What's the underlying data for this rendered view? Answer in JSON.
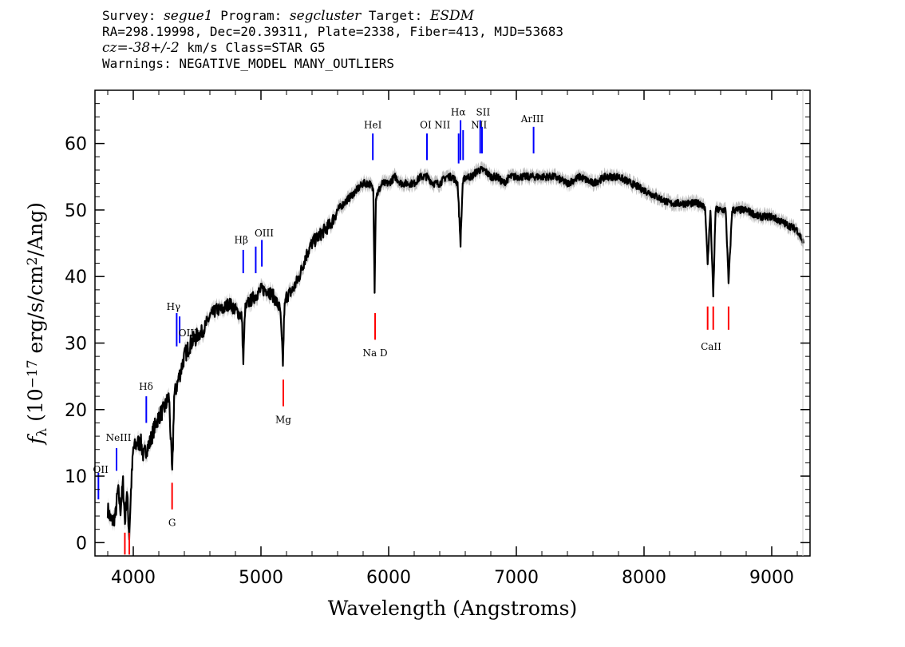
{
  "header": {
    "line1": [
      {
        "t": "Survey: ",
        "i": false
      },
      {
        "t": "segue1",
        "i": true
      },
      {
        "t": " Program: ",
        "i": false
      },
      {
        "t": "segcluster",
        "i": true
      },
      {
        "t": " Target: ",
        "i": false
      },
      {
        "t": "ESDM",
        "i": true
      }
    ],
    "line2": "RA=298.19998, Dec=20.39311, Plate=2338, Fiber=413, MJD=53683",
    "line3": [
      {
        "t": "cz=-38+/-2",
        "i": true
      },
      {
        "t": " km/s Class=STAR G5",
        "i": false
      }
    ],
    "line4": "Warnings: NEGATIVE_MODEL MANY_OUTLIERS"
  },
  "chart_data": {
    "type": "line",
    "xlabel": "Wavelength (Angstroms)",
    "ylabel": "f_λ (10^-17 erg/s/cm^2/Ang)",
    "xlim": [
      3700,
      9300
    ],
    "ylim": [
      -2,
      68
    ],
    "xticks": [
      4000,
      5000,
      6000,
      7000,
      8000,
      9000
    ],
    "yticks": [
      0,
      10,
      20,
      30,
      40,
      50,
      60
    ],
    "grid": false,
    "colors": {
      "flux": "#000000",
      "error": "#bdbdbd",
      "emission": "#0000ff",
      "absorption": "#ff0000"
    },
    "series": [
      {
        "x": [
          3800,
          3830,
          3860,
          3880,
          3900,
          3920,
          3935,
          3950,
          3968,
          3985,
          4000,
          4030,
          4060,
          4080,
          4100,
          4130,
          4160,
          4200,
          4240,
          4280,
          4305,
          4320,
          4360,
          4400,
          4450,
          4500,
          4550,
          4600,
          4650,
          4700,
          4750,
          4800,
          4850,
          4862,
          4875,
          4900,
          4950,
          5000,
          5050,
          5100,
          5150,
          5172,
          5183,
          5200,
          5250,
          5300,
          5350,
          5400,
          5450,
          5500,
          5550,
          5600,
          5650,
          5700,
          5750,
          5800,
          5850,
          5880,
          5890,
          5900,
          5950,
          6000,
          6050,
          6100,
          6150,
          6200,
          6250,
          6300,
          6350,
          6400,
          6450,
          6500,
          6540,
          6563,
          6580,
          6600,
          6650,
          6700,
          6750,
          6800,
          6850,
          6900,
          6950,
          7000,
          7100,
          7200,
          7300,
          7400,
          7500,
          7600,
          7700,
          7800,
          7900,
          8000,
          8100,
          8200,
          8300,
          8400,
          8450,
          8480,
          8498,
          8520,
          8542,
          8560,
          8600,
          8640,
          8662,
          8690,
          8750,
          8800,
          8900,
          9000,
          9100,
          9200,
          9250
        ],
        "y": [
          5,
          3,
          4,
          8,
          5,
          9,
          3,
          8,
          1,
          9,
          14,
          15,
          15,
          13,
          14,
          15,
          17,
          19,
          20,
          22,
          10,
          22,
          25,
          28,
          30,
          31,
          32,
          34,
          35,
          35,
          36,
          35,
          34,
          27,
          35,
          36,
          37,
          38,
          38,
          37,
          35,
          27,
          35,
          37,
          38,
          40,
          43,
          45,
          46,
          47,
          48,
          50,
          51,
          52,
          53,
          54,
          54,
          53,
          38,
          52,
          54,
          54,
          55,
          54,
          54,
          54,
          55,
          55,
          54,
          54,
          55,
          55,
          54,
          45,
          54,
          55,
          55,
          56,
          56,
          55,
          55,
          54,
          55,
          55,
          55,
          55,
          55,
          54,
          55,
          54,
          55,
          55,
          54,
          53,
          52,
          51,
          51,
          51,
          51,
          50,
          42,
          50,
          37,
          50,
          50,
          50,
          39,
          50,
          50,
          50,
          49,
          49,
          48,
          47,
          45
        ]
      }
    ],
    "annotations_emission": [
      {
        "label": "OII",
        "x": 3727
      },
      {
        "label": "NeIII",
        "x": 3869
      },
      {
        "label": "Hδ",
        "x": 4102
      },
      {
        "label": "Hγ",
        "x": 4340
      },
      {
        "label": "OIII",
        "x": 4363
      },
      {
        "label": "Hβ",
        "x": 4861
      },
      {
        "label": "OIII",
        "x": 4959
      },
      {
        "label": "OIII",
        "x": 5007
      },
      {
        "label": "HeI",
        "x": 5876
      },
      {
        "label": "OI",
        "x": 6300
      },
      {
        "label": "NII",
        "x": 6548
      },
      {
        "label": "Hα",
        "x": 6563
      },
      {
        "label": "NII",
        "x": 6583
      },
      {
        "label": "SII",
        "x": 6717
      },
      {
        "label": "SII",
        "x": 6731
      },
      {
        "label": "ArIII",
        "x": 7135
      }
    ],
    "annotations_absorption": [
      {
        "label": "G",
        "x": 4304
      },
      {
        "label": "Mg",
        "x": 5175
      },
      {
        "label": "Na D",
        "x": 5894
      },
      {
        "label": "CaII",
        "x": 8498
      },
      {
        "label": "CaII",
        "x": 8542
      },
      {
        "label": "CaII",
        "x": 8662
      }
    ]
  }
}
